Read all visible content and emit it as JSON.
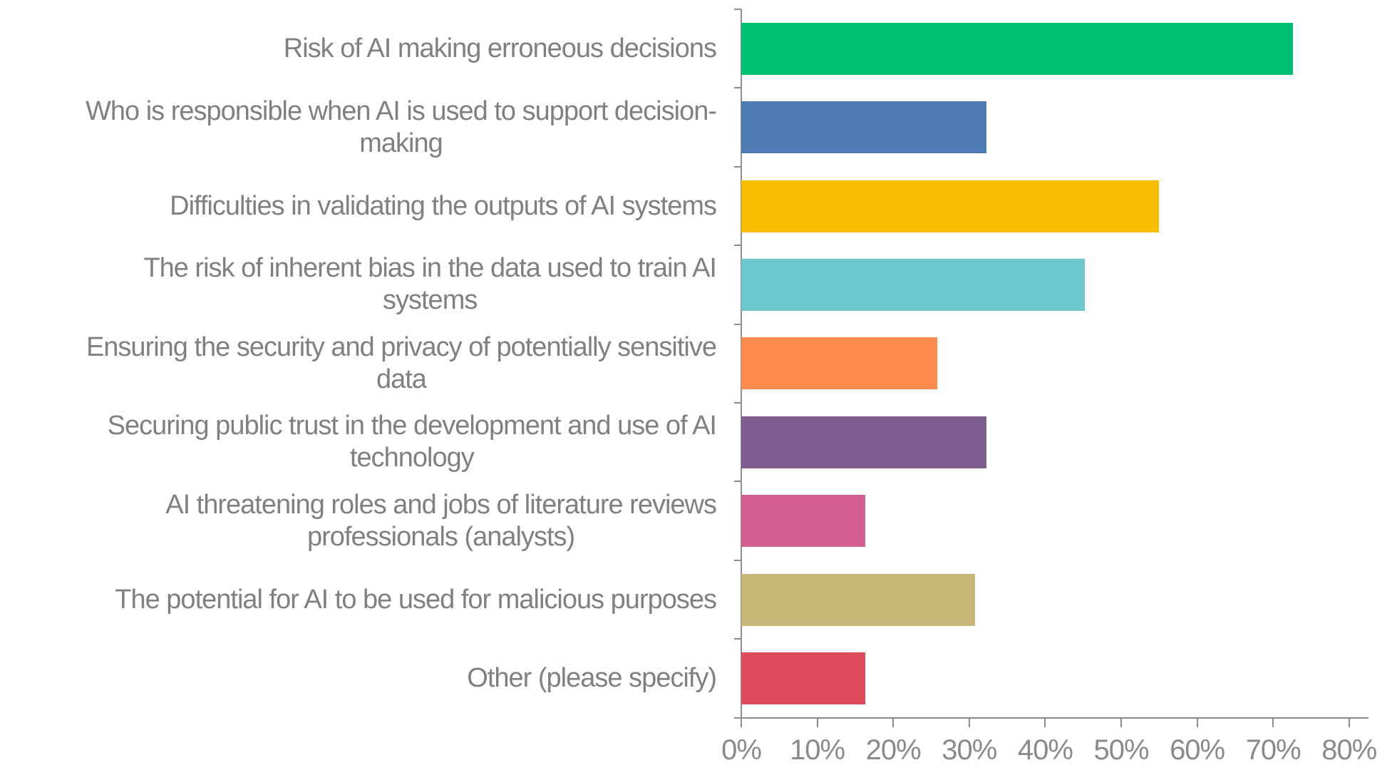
{
  "chart_data": {
    "type": "bar",
    "orientation": "horizontal",
    "title": "",
    "xlabel": "",
    "ylabel": "",
    "xlim": [
      0,
      80
    ],
    "grid": false,
    "legend": null,
    "x_ticks": [
      "0%",
      "10%",
      "20%",
      "30%",
      "40%",
      "50%",
      "60%",
      "70%",
      "80%"
    ],
    "categories": [
      "Risk of AI making erroneous decisions",
      "Who is responsible when AI is used to support decision-making",
      "Difficulties in validating the outputs of AI systems",
      "The risk of inherent bias in the data used to train AI systems",
      "Ensuring the security and privacy of potentially sensitive data",
      "Securing public trust in the development and use of AI technology",
      "AI threatening roles and jobs of literature reviews professionals (analysts)",
      "The potential for AI to be used for malicious purposes",
      "Other (please specify)"
    ],
    "values": [
      72.6,
      32.3,
      55.0,
      45.2,
      25.8,
      32.3,
      16.3,
      30.8,
      16.3
    ],
    "unit": "%",
    "colors": [
      "#00bf6f",
      "#507cb6",
      "#f9be00",
      "#6bc8cd",
      "#ff8b4f",
      "#7f5f90",
      "#d25f90",
      "#c7b879",
      "#dd4b5c"
    ]
  },
  "labels": [
    [
      "Risk of AI making erroneous decisions"
    ],
    [
      "Who is responsible when AI is used to support decision-",
      "making"
    ],
    [
      "Difficulties in validating the outputs of AI systems"
    ],
    [
      "The risk of inherent bias in the data used to train AI",
      "systems"
    ],
    [
      "Ensuring the security and privacy of potentially sensitive",
      "data"
    ],
    [
      "Securing public trust in the development and use of AI",
      "technology"
    ],
    [
      "AI threatening roles and jobs of literature reviews",
      "professionals (analysts)"
    ],
    [
      "The potential for AI to be used for malicious purposes"
    ],
    [
      "Other (please specify)"
    ]
  ]
}
